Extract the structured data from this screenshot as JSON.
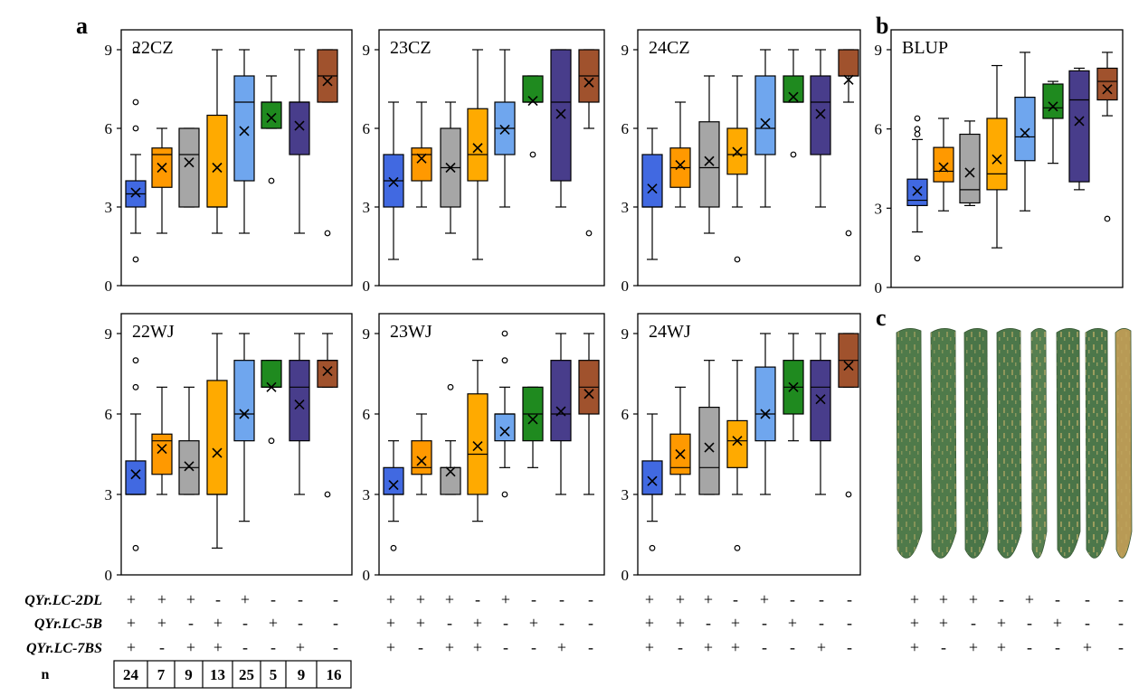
{
  "panel_labels": {
    "a": "a",
    "b": "b",
    "c": "c"
  },
  "palette": [
    "#4169e1",
    "#ff9900",
    "#a6a6a6",
    "#ffaa00",
    "#6fa6ee",
    "#1f8a1f",
    "#483d8b",
    "#a0522d"
  ],
  "photo": {
    "leaf_count": 8,
    "leaf_colors": [
      "#4f7a4a",
      "#4f7a4a",
      "#4a7548",
      "#4c774a",
      "#567f50",
      "#4a7548",
      "#4c774a",
      "#b89a55"
    ]
  },
  "genotype_table": {
    "row_labels": [
      "QYr.LC-2DL",
      "QYr.LC-5B",
      "QYr.LC-7BS",
      "n"
    ],
    "rows": [
      [
        "+",
        "+",
        "+",
        "-",
        "+",
        "-",
        "-",
        "-"
      ],
      [
        "+",
        "+",
        "-",
        "+",
        "-",
        "+",
        "-",
        "-"
      ],
      [
        "+",
        "-",
        "+",
        "+",
        "-",
        "-",
        "+",
        "-"
      ]
    ],
    "n": [
      "24",
      "7",
      "9",
      "13",
      "25",
      "5",
      "9",
      "16"
    ]
  },
  "chart_data": [
    {
      "type": "box",
      "title": "22CZ",
      "ylim": [
        0,
        9
      ],
      "yticks": [
        0,
        3,
        6,
        9
      ],
      "groups": [
        {
          "min": 2,
          "q1": 3,
          "median": 3.5,
          "q3": 4,
          "max": 5,
          "mean": 3.55,
          "outliers": [
            1,
            6,
            7,
            9
          ]
        },
        {
          "min": 2,
          "q1": 3.75,
          "median": 5,
          "q3": 5.25,
          "max": 6,
          "mean": 4.5,
          "outliers": []
        },
        {
          "min": 3,
          "q1": 3,
          "median": 5,
          "q3": 6,
          "max": 6,
          "mean": 4.7,
          "outliers": []
        },
        {
          "min": 2,
          "q1": 3,
          "median": 3,
          "q3": 6.5,
          "max": 9,
          "mean": 4.5,
          "outliers": []
        },
        {
          "min": 2,
          "q1": 4,
          "median": 7,
          "q3": 8,
          "max": 9,
          "mean": 5.9,
          "outliers": []
        },
        {
          "min": 6,
          "q1": 6,
          "median": 7,
          "q3": 7,
          "max": 8,
          "mean": 6.4,
          "outliers": [
            4
          ]
        },
        {
          "min": 2,
          "q1": 5,
          "median": 7,
          "q3": 7,
          "max": 9,
          "mean": 6.1,
          "outliers": []
        },
        {
          "min": 7,
          "q1": 7,
          "median": 8,
          "q3": 9,
          "max": 9,
          "mean": 7.8,
          "outliers": [
            2
          ]
        }
      ]
    },
    {
      "type": "box",
      "title": "23CZ",
      "ylim": [
        0,
        9
      ],
      "yticks": [
        0,
        3,
        6,
        9
      ],
      "groups": [
        {
          "min": 1,
          "q1": 3,
          "median": 4,
          "q3": 5,
          "max": 7,
          "mean": 3.95,
          "outliers": []
        },
        {
          "min": 3,
          "q1": 4,
          "median": 5,
          "q3": 5.25,
          "max": 7,
          "mean": 4.85,
          "outliers": []
        },
        {
          "min": 2,
          "q1": 3,
          "median": 4.5,
          "q3": 6,
          "max": 7,
          "mean": 4.5,
          "outliers": []
        },
        {
          "min": 1,
          "q1": 4,
          "median": 5,
          "q3": 6.75,
          "max": 9,
          "mean": 5.25,
          "outliers": []
        },
        {
          "min": 3,
          "q1": 5,
          "median": 6,
          "q3": 7,
          "max": 9,
          "mean": 5.95,
          "outliers": []
        },
        {
          "min": 7,
          "q1": 7,
          "median": 7,
          "q3": 8,
          "max": 8,
          "mean": 7.05,
          "outliers": [
            5
          ]
        },
        {
          "min": 3,
          "q1": 4,
          "median": 7,
          "q3": 9,
          "max": 9,
          "mean": 6.55,
          "outliers": []
        },
        {
          "min": 6,
          "q1": 7,
          "median": 8,
          "q3": 9,
          "max": 9,
          "mean": 7.75,
          "outliers": [
            2
          ]
        }
      ]
    },
    {
      "type": "box",
      "title": "24CZ",
      "ylim": [
        0,
        9
      ],
      "yticks": [
        0,
        3,
        6,
        9
      ],
      "groups": [
        {
          "min": 1,
          "q1": 3,
          "median": 3,
          "q3": 5,
          "max": 6,
          "mean": 3.7,
          "outliers": []
        },
        {
          "min": 3,
          "q1": 3.75,
          "median": 4.5,
          "q3": 5.25,
          "max": 7,
          "mean": 4.6,
          "outliers": []
        },
        {
          "min": 2,
          "q1": 3,
          "median": 4.5,
          "q3": 6.25,
          "max": 8,
          "mean": 4.75,
          "outliers": []
        },
        {
          "min": 3,
          "q1": 4.25,
          "median": 5,
          "q3": 6,
          "max": 8,
          "mean": 5.1,
          "outliers": [
            1
          ]
        },
        {
          "min": 3,
          "q1": 5,
          "median": 6,
          "q3": 8,
          "max": 9,
          "mean": 6.2,
          "outliers": []
        },
        {
          "min": 7,
          "q1": 7,
          "median": 7,
          "q3": 8,
          "max": 9,
          "mean": 7.2,
          "outliers": [
            5
          ]
        },
        {
          "min": 3,
          "q1": 5,
          "median": 7,
          "q3": 8,
          "max": 9,
          "mean": 6.55,
          "outliers": []
        },
        {
          "min": 7,
          "q1": 8,
          "median": 8,
          "q3": 9,
          "max": 9,
          "mean": 7.85,
          "outliers": [
            2
          ]
        }
      ]
    },
    {
      "type": "box",
      "title": "BLUP",
      "ylim": [
        0,
        9
      ],
      "yticks": [
        0,
        3,
        6,
        9
      ],
      "groups": [
        {
          "min": 2.1,
          "q1": 3.1,
          "median": 3.3,
          "q3": 4.1,
          "max": 5.6,
          "mean": 3.65,
          "outliers": [
            1.1,
            5.8,
            6.0,
            6.4
          ]
        },
        {
          "min": 2.9,
          "q1": 4.0,
          "median": 4.4,
          "q3": 5.3,
          "max": 6.4,
          "mean": 4.55,
          "outliers": []
        },
        {
          "min": 3.1,
          "q1": 3.2,
          "median": 3.7,
          "q3": 5.8,
          "max": 6.3,
          "mean": 4.35,
          "outliers": []
        },
        {
          "min": 1.5,
          "q1": 3.7,
          "median": 4.3,
          "q3": 6.4,
          "max": 8.4,
          "mean": 4.85,
          "outliers": []
        },
        {
          "min": 2.9,
          "q1": 4.8,
          "median": 5.7,
          "q3": 7.2,
          "max": 8.9,
          "mean": 5.85,
          "outliers": []
        },
        {
          "min": 4.7,
          "q1": 6.4,
          "median": 6.8,
          "q3": 7.7,
          "max": 7.8,
          "mean": 6.85,
          "outliers": []
        },
        {
          "min": 3.7,
          "q1": 4.0,
          "median": 7.1,
          "q3": 8.2,
          "max": 8.3,
          "mean": 6.3,
          "outliers": []
        },
        {
          "min": 6.5,
          "q1": 7.1,
          "median": 7.8,
          "q3": 8.3,
          "max": 8.9,
          "mean": 7.5,
          "outliers": [
            2.6
          ]
        }
      ]
    },
    {
      "type": "box",
      "title": "22WJ",
      "ylim": [
        0,
        9
      ],
      "yticks": [
        0,
        3,
        6,
        9
      ],
      "groups": [
        {
          "min": 3,
          "q1": 3,
          "median": 3,
          "q3": 4.25,
          "max": 6,
          "mean": 3.75,
          "outliers": [
            1,
            7,
            8
          ]
        },
        {
          "min": 3,
          "q1": 3.75,
          "median": 5,
          "q3": 5.25,
          "max": 7,
          "mean": 4.7,
          "outliers": []
        },
        {
          "min": 3,
          "q1": 3,
          "median": 4,
          "q3": 5,
          "max": 7,
          "mean": 4.05,
          "outliers": []
        },
        {
          "min": 1,
          "q1": 3,
          "median": 3,
          "q3": 7.25,
          "max": 9,
          "mean": 4.55,
          "outliers": []
        },
        {
          "min": 2,
          "q1": 5,
          "median": 6,
          "q3": 8,
          "max": 9,
          "mean": 6.0,
          "outliers": []
        },
        {
          "min": 7,
          "q1": 7,
          "median": 7,
          "q3": 8,
          "max": 8,
          "mean": 7.0,
          "outliers": [
            5
          ]
        },
        {
          "min": 3,
          "q1": 5,
          "median": 7,
          "q3": 8,
          "max": 9,
          "mean": 6.35,
          "outliers": []
        },
        {
          "min": 7,
          "q1": 7,
          "median": 8,
          "q3": 8,
          "max": 9,
          "mean": 7.6,
          "outliers": [
            3
          ]
        }
      ]
    },
    {
      "type": "box",
      "title": "23WJ",
      "ylim": [
        0,
        9
      ],
      "yticks": [
        0,
        3,
        6,
        9
      ],
      "groups": [
        {
          "min": 2,
          "q1": 3,
          "median": 3,
          "q3": 4,
          "max": 5,
          "mean": 3.35,
          "outliers": [
            1
          ]
        },
        {
          "min": 3,
          "q1": 3.75,
          "median": 4,
          "q3": 5,
          "max": 6,
          "mean": 4.25,
          "outliers": []
        },
        {
          "min": 3,
          "q1": 3,
          "median": 4,
          "q3": 4,
          "max": 5,
          "mean": 3.85,
          "outliers": [
            7
          ]
        },
        {
          "min": 2,
          "q1": 3,
          "median": 4.5,
          "q3": 6.75,
          "max": 8,
          "mean": 4.8,
          "outliers": []
        },
        {
          "min": 4,
          "q1": 5,
          "median": 6,
          "q3": 6,
          "max": 7,
          "mean": 5.35,
          "outliers": [
            3,
            8,
            9
          ]
        },
        {
          "min": 4,
          "q1": 5,
          "median": 6,
          "q3": 7,
          "max": 7,
          "mean": 5.8,
          "outliers": []
        },
        {
          "min": 3,
          "q1": 5,
          "median": 6,
          "q3": 8,
          "max": 9,
          "mean": 6.1,
          "outliers": []
        },
        {
          "min": 3,
          "q1": 6,
          "median": 7,
          "q3": 8,
          "max": 9,
          "mean": 6.75,
          "outliers": []
        }
      ]
    },
    {
      "type": "box",
      "title": "24WJ",
      "ylim": [
        0,
        9
      ],
      "yticks": [
        0,
        3,
        6,
        9
      ],
      "groups": [
        {
          "min": 2,
          "q1": 3,
          "median": 3,
          "q3": 4.25,
          "max": 6,
          "mean": 3.5,
          "outliers": [
            1
          ]
        },
        {
          "min": 3,
          "q1": 3.75,
          "median": 4,
          "q3": 5.25,
          "max": 7,
          "mean": 4.5,
          "outliers": []
        },
        {
          "min": 3,
          "q1": 3,
          "median": 4,
          "q3": 6.25,
          "max": 8,
          "mean": 4.75,
          "outliers": []
        },
        {
          "min": 3,
          "q1": 4,
          "median": 5,
          "q3": 5.75,
          "max": 8,
          "mean": 5.0,
          "outliers": [
            1
          ]
        },
        {
          "min": 3,
          "q1": 5,
          "median": 6,
          "q3": 7.75,
          "max": 9,
          "mean": 6.0,
          "outliers": []
        },
        {
          "min": 5,
          "q1": 6,
          "median": 7,
          "q3": 8,
          "max": 9,
          "mean": 7.0,
          "outliers": []
        },
        {
          "min": 3,
          "q1": 5,
          "median": 7,
          "q3": 8,
          "max": 9,
          "mean": 6.55,
          "outliers": []
        },
        {
          "min": 7,
          "q1": 7,
          "median": 8,
          "q3": 9,
          "max": 9,
          "mean": 7.8,
          "outliers": [
            3
          ]
        }
      ]
    }
  ]
}
